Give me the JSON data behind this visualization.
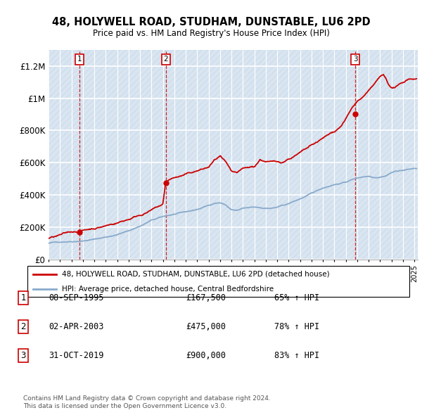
{
  "title": "48, HOLYWELL ROAD, STUDHAM, DUNSTABLE, LU6 2PD",
  "subtitle": "Price paid vs. HM Land Registry's House Price Index (HPI)",
  "ylabel_ticks": [
    "£0",
    "£200K",
    "£400K",
    "£600K",
    "£800K",
    "£1M",
    "£1.2M"
  ],
  "ylim": [
    0,
    1300000
  ],
  "yticks": [
    0,
    200000,
    400000,
    600000,
    800000,
    1000000,
    1200000
  ],
  "xmin": 1993.0,
  "xmax": 2025.3,
  "sale_dates": [
    1995.69,
    2003.25,
    2019.83
  ],
  "sale_prices": [
    167500,
    475000,
    900000
  ],
  "sale_labels": [
    "1",
    "2",
    "3"
  ],
  "legend_line1": "48, HOLYWELL ROAD, STUDHAM, DUNSTABLE, LU6 2PD (detached house)",
  "legend_line2": "HPI: Average price, detached house, Central Bedfordshire",
  "table_data": [
    [
      "1",
      "08-SEP-1995",
      "£167,500",
      "65% ↑ HPI"
    ],
    [
      "2",
      "02-APR-2003",
      "£475,000",
      "78% ↑ HPI"
    ],
    [
      "3",
      "31-OCT-2019",
      "£900,000",
      "83% ↑ HPI"
    ]
  ],
  "footer1": "Contains HM Land Registry data © Crown copyright and database right 2024.",
  "footer2": "This data is licensed under the Open Government Licence v3.0.",
  "sale_line_color": "#cc0000",
  "hpi_line_color": "#88aacc",
  "bg_hatch_color": "#c8d8e8",
  "bg_fill_color": "#dce8f0",
  "plot_bg": "#e8f0f8"
}
